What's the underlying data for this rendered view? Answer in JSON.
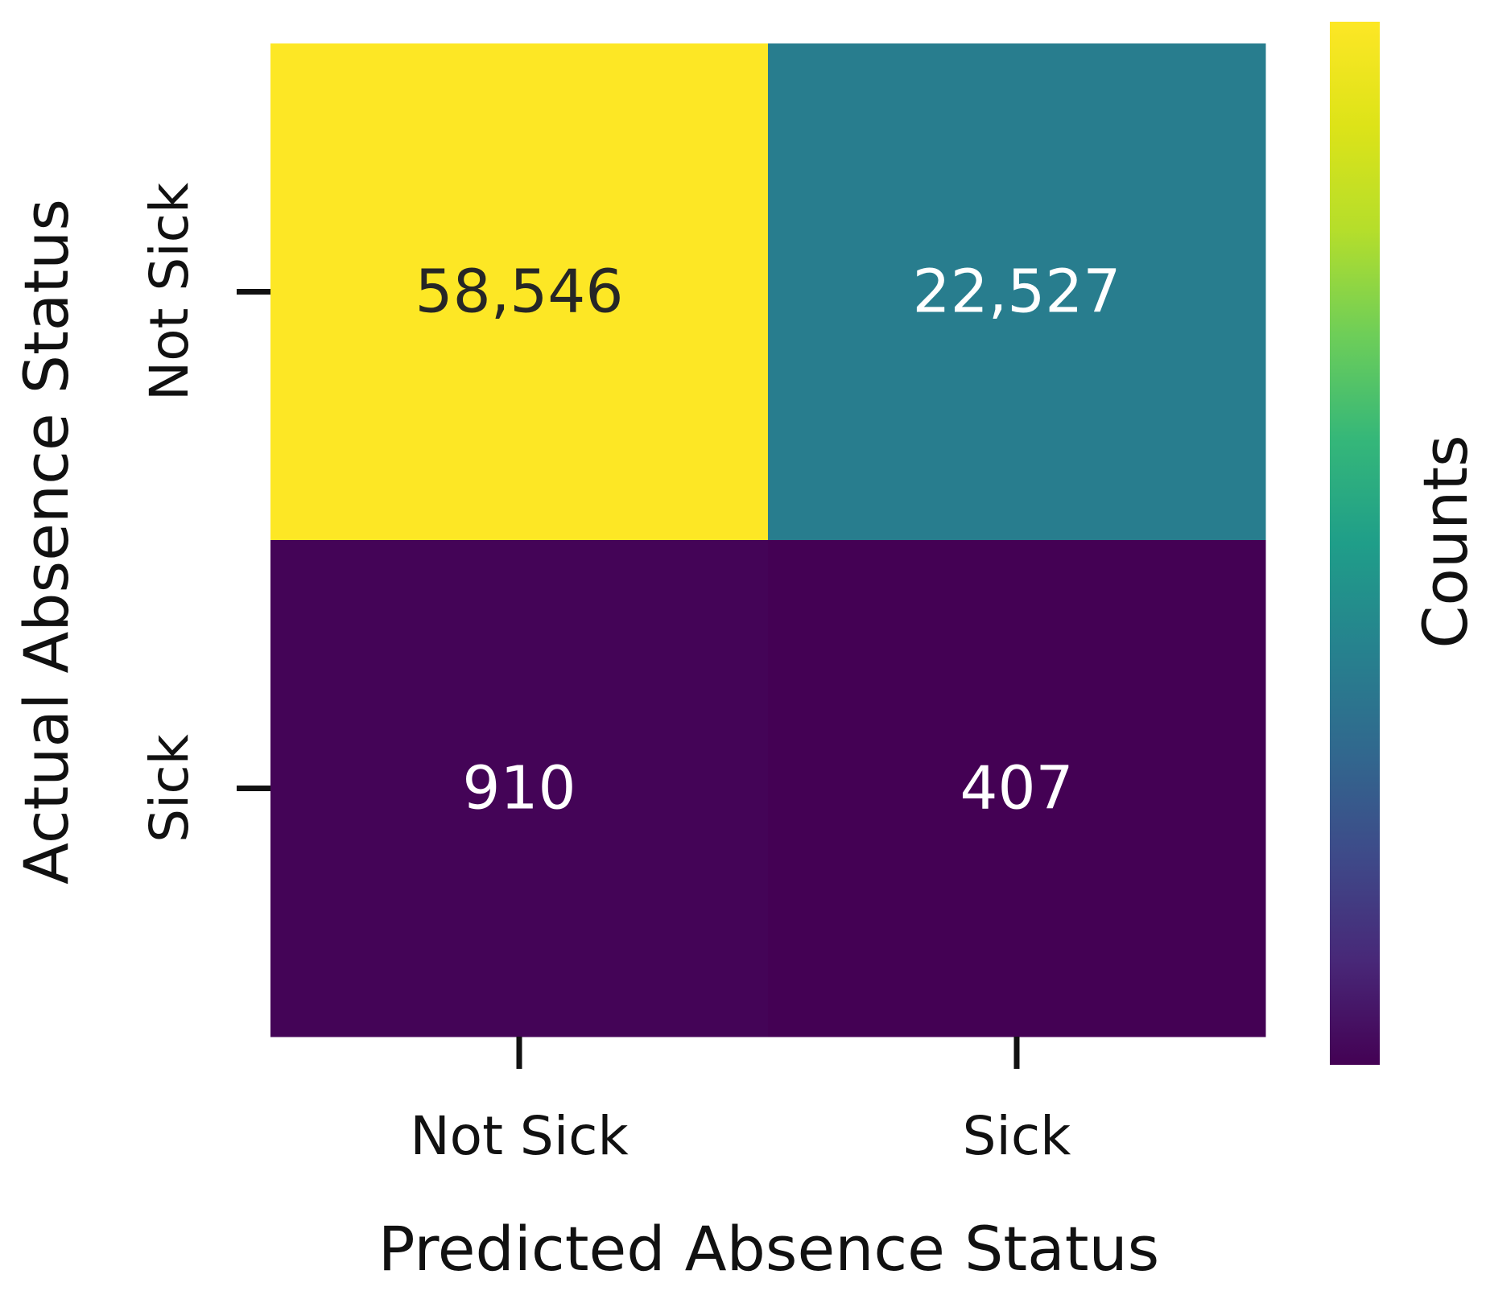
{
  "chart_data": {
    "type": "heatmap",
    "x_categories": [
      "Not Sick",
      "Sick"
    ],
    "y_categories": [
      "Not Sick",
      "Sick"
    ],
    "values": [
      [
        58546,
        22527
      ],
      [
        910,
        407
      ]
    ],
    "cell_labels": [
      [
        "58,546",
        "22,527"
      ],
      [
        "910",
        "407"
      ]
    ],
    "xlabel": "Predicted Absence Status",
    "ylabel": "Actual Absence Status",
    "colorbar_label": "Counts",
    "colormap": "viridis",
    "vmin": 407,
    "vmax": 58546
  }
}
